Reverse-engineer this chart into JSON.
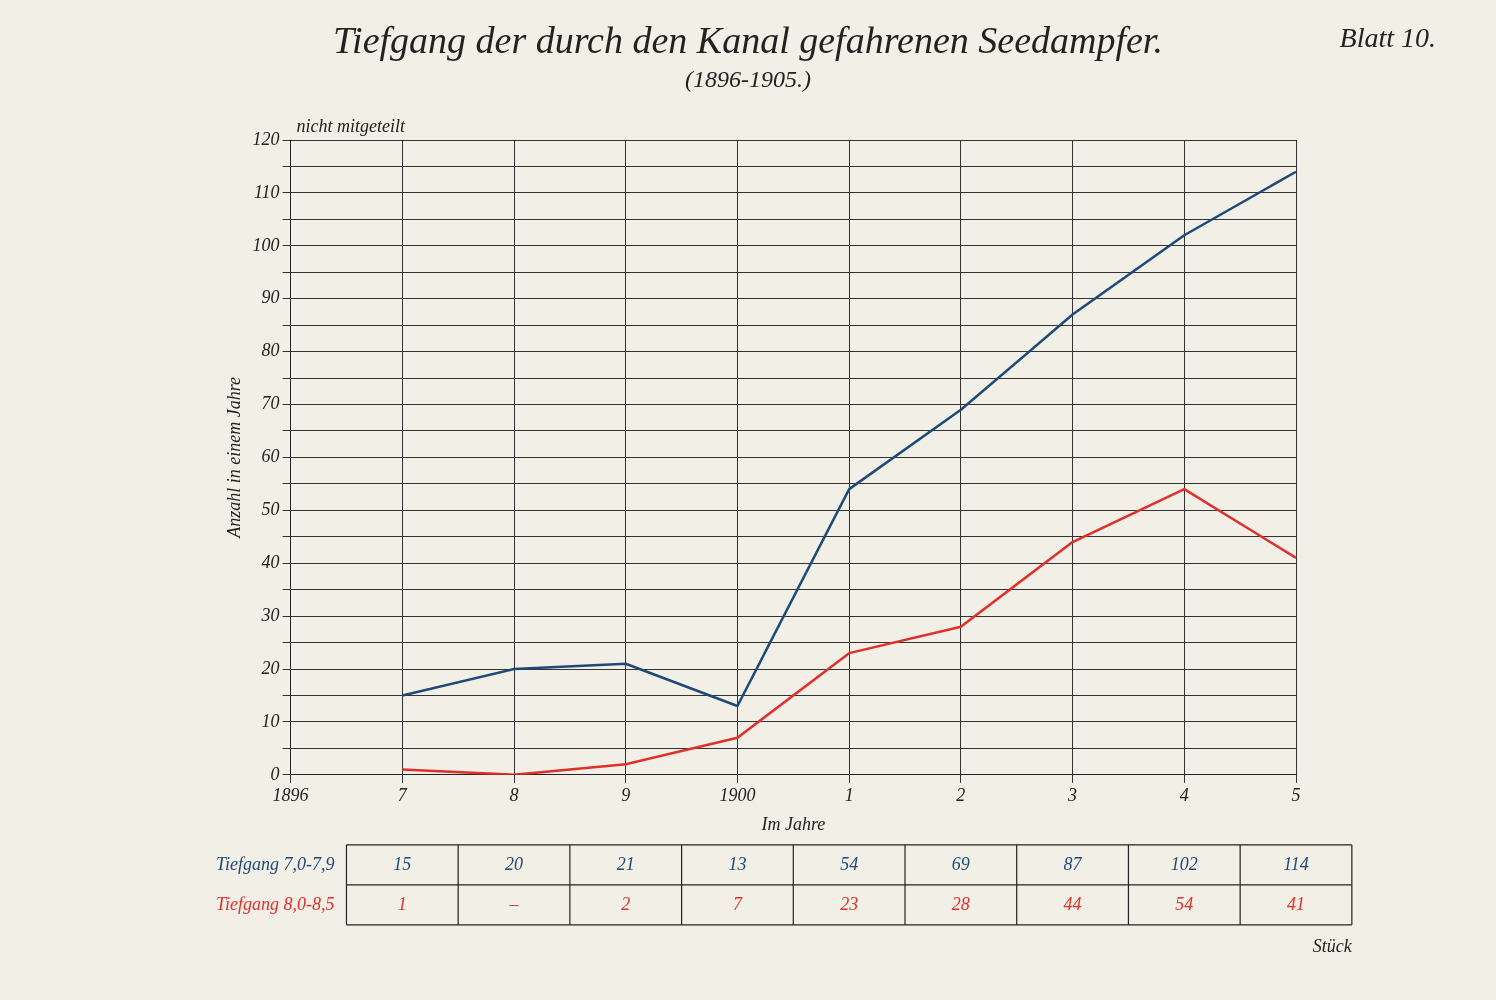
{
  "chart_data": {
    "type": "line",
    "title": "Tiefgang der durch den Kanal gefahrenen Seedampfer.",
    "subtitle": "(1896-1905.)",
    "xlabel": "Im Jahre",
    "ylabel": "Anzahl in einem Jahre",
    "categories": [
      "1896",
      "7",
      "8",
      "9",
      "1900",
      "1",
      "2",
      "3",
      "4",
      "5"
    ],
    "series": [
      {
        "name": "Tiefgang 7,0-7,9",
        "color": "#1f4a78",
        "values": [
          null,
          15,
          20,
          21,
          13,
          54,
          69,
          87,
          102,
          114
        ],
        "value_labels": [
          null,
          "15",
          "20",
          "21",
          "13",
          "54",
          "69",
          "87",
          "102",
          "114"
        ]
      },
      {
        "name": "Tiefgang 8,0-8,5",
        "color": "#e0302a",
        "values": [
          null,
          1,
          0,
          2,
          7,
          23,
          28,
          44,
          54,
          41
        ],
        "value_labels": [
          null,
          "1",
          "–",
          "2",
          "7",
          "23",
          "28",
          "44",
          "54",
          "41"
        ]
      }
    ],
    "ylim": [
      0,
      120
    ],
    "yticks": [
      0,
      {
        "value": 5,
        "label": null
      },
      10,
      {
        "value": 15,
        "label": null
      },
      20,
      {
        "value": 25,
        "label": null
      },
      30,
      {
        "value": 35,
        "label": null
      },
      40,
      {
        "value": 45,
        "label": null
      },
      50,
      {
        "value": 55,
        "label": null
      },
      60,
      {
        "value": 65,
        "label": null
      },
      70,
      {
        "value": 75,
        "label": null
      },
      80,
      {
        "value": 85,
        "label": null
      },
      90,
      {
        "value": 95,
        "label": null
      },
      100,
      {
        "value": 105,
        "label": null
      },
      110,
      {
        "value": 115,
        "label": null
      },
      120
    ],
    "grid": true,
    "legend": false,
    "marker": "none",
    "line_style": "solid",
    "annotations": [
      "Blatt 10.",
      "nicht mitgeteilt",
      "Stück"
    ]
  }
}
